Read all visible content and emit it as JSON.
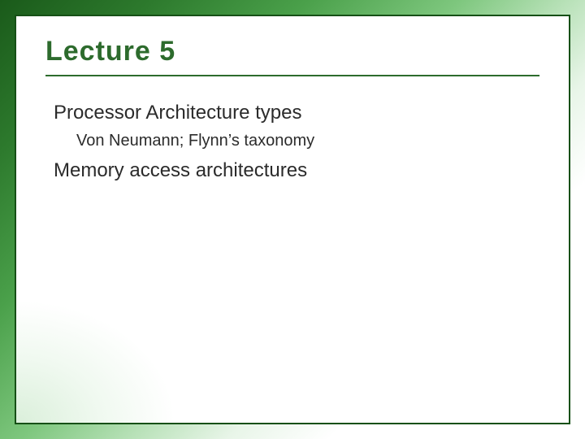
{
  "slide": {
    "title": "Lecture 5",
    "title_color": "#2d6b2d",
    "title_fontsize": 34,
    "underline_color": "#2d6b2d",
    "border_color": "#165016",
    "background_gradient": [
      "#1a5a1a",
      "#2d7a2d",
      "#4aa04a",
      "#7ec77e",
      "#b5e0b5",
      "#e8f5e8",
      "#ffffff"
    ],
    "body_text_color": "#2b2b2b",
    "body_font": "Verdana",
    "bullets": [
      {
        "level": 1,
        "text": "Processor Architecture types",
        "fontsize": 24
      },
      {
        "level": 2,
        "text": "Von Neumann; Flynn’s taxonomy",
        "fontsize": 20
      },
      {
        "level": 1,
        "text": "Memory access architectures",
        "fontsize": 24
      }
    ],
    "bullet_icon_color": "#2d6b2d"
  }
}
